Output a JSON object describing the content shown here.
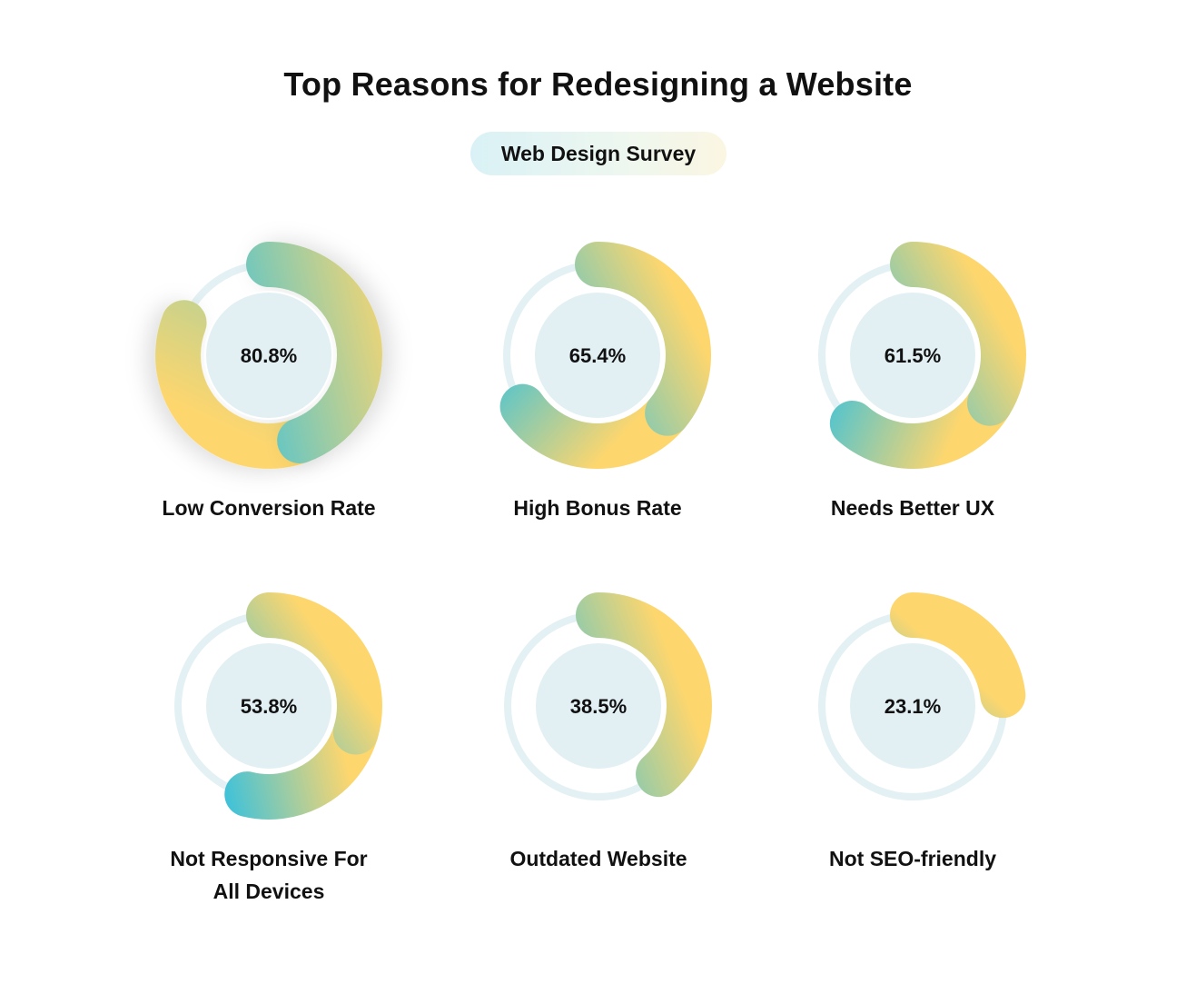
{
  "title": "Top Reasons for Redesigning a Website",
  "subtitle": "Web Design Survey",
  "colors": {
    "track": "#e4f1f4",
    "inner": "#e2f0f3",
    "gradient_start": "#41c2d8",
    "gradient_end": "#fdd66e"
  },
  "chart_data": {
    "type": "pie",
    "title": "Top Reasons for Redesigning a Website",
    "subtitle": "Web Design Survey",
    "unit": "%",
    "categories": [
      "Low Conversion Rate",
      "High Bonus Rate",
      "Needs Better UX",
      "Not Responsive For All Devices",
      "Outdated Website",
      "Not SEO-friendly"
    ],
    "values": [
      80.8,
      65.4,
      61.5,
      53.8,
      38.5,
      23.1
    ],
    "items": [
      {
        "label": "Low Conversion Rate",
        "value": 80.8,
        "value_text": "80.8%"
      },
      {
        "label": "High Bonus Rate",
        "value": 65.4,
        "value_text": "65.4%"
      },
      {
        "label": "Needs Better UX",
        "value": 61.5,
        "value_text": "61.5%"
      },
      {
        "label": "Not Responsive For\nAll Devices",
        "value": 53.8,
        "value_text": "53.8%"
      },
      {
        "label": "Outdated Website",
        "value": 38.5,
        "value_text": "38.5%"
      },
      {
        "label": "Not SEO-friendly",
        "value": 23.1,
        "value_text": "23.1%"
      }
    ]
  }
}
